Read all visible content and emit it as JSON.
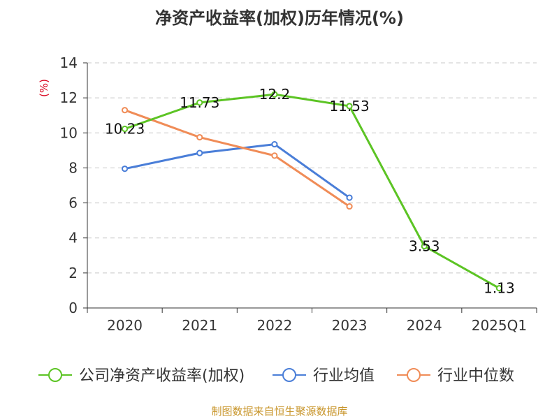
{
  "title": "净资产收益率(加权)历年情况(%)",
  "source": "制图数据来自恒生聚源数据库",
  "chart_data": {
    "type": "line",
    "categories": [
      "2020",
      "2021",
      "2022",
      "2023",
      "2024",
      "2025Q1"
    ],
    "ylabel": "(%)",
    "ylim": [
      0,
      14
    ],
    "yticks": [
      0,
      2,
      4,
      6,
      8,
      10,
      12,
      14
    ],
    "grid": true,
    "legend_position": "bottom",
    "series": [
      {
        "name": "公司净资产收益率(加权)",
        "color": "#5cc424",
        "values": [
          10.23,
          11.73,
          12.2,
          11.53,
          3.53,
          1.13
        ],
        "labels": [
          "10.23",
          "11.73",
          "12.2",
          "11.53",
          "3.53",
          "1.13"
        ]
      },
      {
        "name": "行业均值",
        "color": "#4a7ed8",
        "values": [
          7.95,
          8.85,
          9.35,
          6.3,
          null,
          null
        ]
      },
      {
        "name": "行业中位数",
        "color": "#f08c57",
        "values": [
          11.3,
          9.75,
          8.7,
          5.8,
          null,
          null
        ]
      }
    ]
  }
}
